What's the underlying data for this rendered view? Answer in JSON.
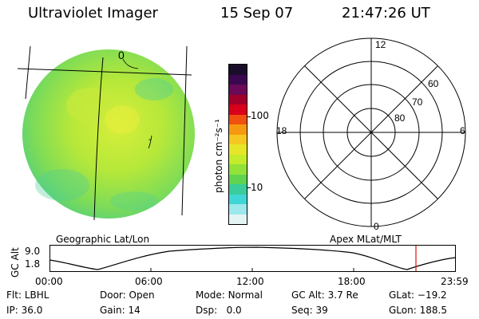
{
  "header": {
    "instrument": "Ultraviolet Imager",
    "date": "15 Sep 07",
    "time": "21:47:26 UT"
  },
  "colorbar": {
    "unit_label": "photon cm⁻²s⁻¹",
    "ticks": [
      "100",
      "10"
    ],
    "colors": [
      "#1a0d2a",
      "#3a0850",
      "#6a0a58",
      "#a0002a",
      "#d8001a",
      "#f05010",
      "#f59a10",
      "#f4c820",
      "#e6e628",
      "#c4ec2a",
      "#92e23a",
      "#60d450",
      "#3acc9a",
      "#40d6d6",
      "#9ce8ec",
      "#e4f4f4"
    ]
  },
  "geographic": {
    "label": "Geographic Lat/Lon",
    "grid_labels": [
      "0",
      "-"
    ]
  },
  "apex": {
    "label": "Apex MLat/MLT",
    "mlt_labels": [
      "12",
      "18",
      "6",
      "0"
    ],
    "mlat_labels": [
      "60",
      "70",
      "80"
    ]
  },
  "altitude_plot": {
    "axis_label": "GC Alt",
    "y_ticks": [
      "9.0",
      "1.8"
    ],
    "x_ticks": [
      "00:00",
      "06:00",
      "12:00",
      "18:00",
      "23:59"
    ],
    "marker_color": "#e01010"
  },
  "status": {
    "row1": [
      {
        "key": "Flt:",
        "value": "LBHL"
      },
      {
        "key": "Door:",
        "value": "Open"
      },
      {
        "key": "Mode:",
        "value": "Normal"
      },
      {
        "key": "GC Alt:",
        "value": "3.7 Re"
      },
      {
        "key": "GLat:",
        "value": "−19.2"
      }
    ],
    "row2": [
      {
        "key": "IP:",
        "value": "36.0"
      },
      {
        "key": "Gain:",
        "value": "14"
      },
      {
        "key": "Dsp:",
        "value": "0.0"
      },
      {
        "key": "Seq:",
        "value": "39"
      },
      {
        "key": "GLon:",
        "value": "188.5"
      }
    ]
  }
}
